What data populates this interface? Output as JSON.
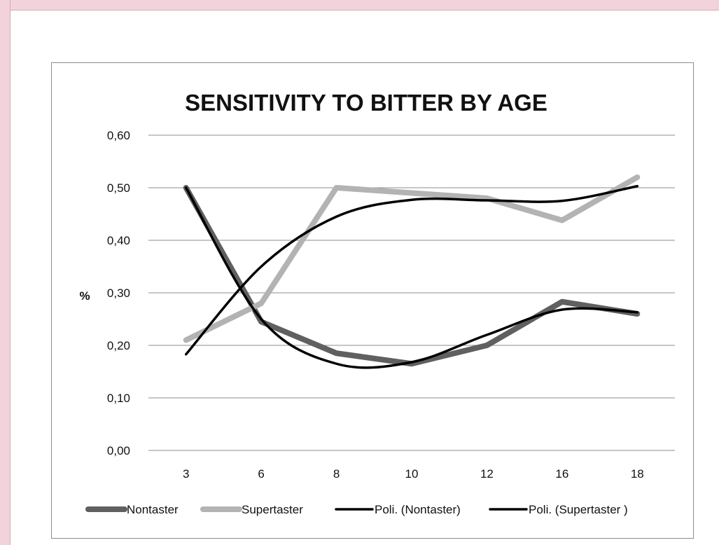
{
  "chart_data": {
    "type": "line",
    "title": "SENSITIVITY TO BITTER BY AGE",
    "ylabel": "%",
    "xlabel": "",
    "categories": [
      "3",
      "6",
      "8",
      "10",
      "12",
      "16",
      "18"
    ],
    "ylim": [
      0,
      0.6
    ],
    "yticks": [
      "0,00",
      "0,10",
      "0,20",
      "0,30",
      "0,40",
      "0,50",
      "0,60"
    ],
    "grid": true,
    "legend_position": "bottom",
    "series": [
      {
        "name": "Nontaster",
        "values": [
          0.5,
          0.245,
          0.185,
          0.165,
          0.2,
          0.283,
          0.26
        ],
        "color": "#606060",
        "kind": "data"
      },
      {
        "name": "Supertaster",
        "values": [
          0.21,
          0.28,
          0.5,
          0.49,
          0.48,
          0.438,
          0.52
        ],
        "color": "#b3b3b3",
        "kind": "data"
      },
      {
        "name": "Poli. (Nontaster)",
        "values": [
          0.5,
          0.25,
          0.165,
          0.168,
          0.22,
          0.268,
          0.263
        ],
        "color": "#000000",
        "kind": "trend"
      },
      {
        "name": "Poli. (Supertaster )",
        "values": [
          0.183,
          0.35,
          0.445,
          0.477,
          0.476,
          0.475,
          0.503
        ],
        "color": "#000000",
        "kind": "trend"
      }
    ]
  }
}
